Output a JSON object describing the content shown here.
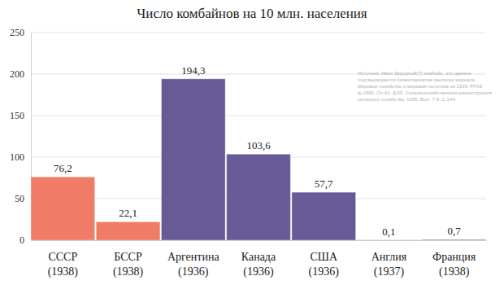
{
  "chart_data": {
    "type": "bar",
    "title": "Число комбайнов на 10 млн. населения",
    "categories": [
      "СССР\n(1938)",
      "БССР\n(1938)",
      "Аргентина\n(1936)",
      "Канада\n(1936)",
      "США\n(1936)",
      "Англия\n(1937)",
      "Франция\n(1938)"
    ],
    "values": [
      76.2,
      22.1,
      194.3,
      103.6,
      57.7,
      0.1,
      0.7
    ],
    "value_labels": [
      "76,2",
      "22,1",
      "194,3",
      "103,6",
      "57,7",
      "0,1",
      "0,7"
    ],
    "colors": [
      "#f07b66",
      "#f07b66",
      "#675a96",
      "#675a96",
      "#675a96",
      "#675a96",
      "#675a96"
    ],
    "ylim": [
      0,
      250
    ],
    "yticks": [
      0,
      50,
      100,
      150,
      200,
      250
    ],
    "grid": true,
    "data_labels": true,
    "annotations": [
      "Источник: Иван Зарудный(?) комбайн, эти данные",
      "подтверждаются Комиссариатом (выпуски журнала",
      "Мировое хозяйство и мировая политика за 1939; РГАЭ",
      "ф.1562, Оп.41. Д.65. Сельскохозяйственная реконструкция",
      "сельского хозяйства. 1936. Вып. 7-8. С.144."
    ]
  }
}
